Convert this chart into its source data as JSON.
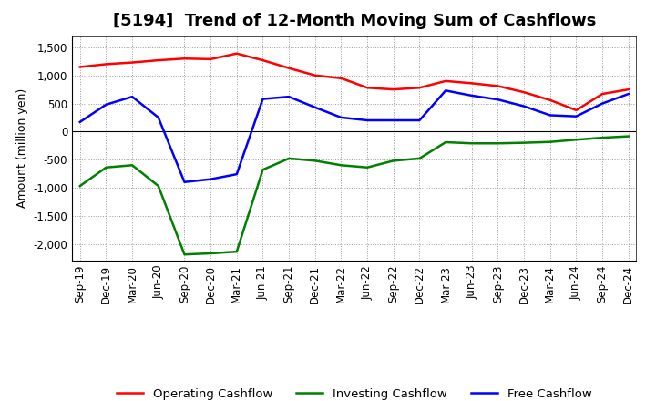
{
  "title": "[5194]  Trend of 12-Month Moving Sum of Cashflows",
  "ylabel": "Amount (million yen)",
  "x_labels": [
    "Sep-19",
    "Dec-19",
    "Mar-20",
    "Jun-20",
    "Sep-20",
    "Dec-20",
    "Mar-21",
    "Jun-21",
    "Sep-21",
    "Dec-21",
    "Mar-22",
    "Jun-22",
    "Sep-22",
    "Dec-22",
    "Mar-23",
    "Jun-23",
    "Sep-23",
    "Dec-23",
    "Mar-24",
    "Jun-24",
    "Sep-24",
    "Dec-24"
  ],
  "operating_cashflow": [
    1150,
    1200,
    1230,
    1270,
    1300,
    1290,
    1390,
    1270,
    1130,
    1000,
    950,
    780,
    750,
    780,
    900,
    860,
    810,
    700,
    560,
    380,
    670,
    750
  ],
  "investing_cashflow": [
    -970,
    -640,
    -600,
    -970,
    -2190,
    -2170,
    -2140,
    -680,
    -480,
    -520,
    -600,
    -640,
    -520,
    -480,
    -190,
    -210,
    -210,
    -200,
    -185,
    -145,
    -110,
    -85
  ],
  "free_cashflow": [
    170,
    480,
    620,
    250,
    -900,
    -850,
    -760,
    580,
    620,
    430,
    250,
    200,
    200,
    200,
    730,
    640,
    570,
    450,
    290,
    270,
    500,
    670
  ],
  "ylim": [
    -2300,
    1700
  ],
  "yticks": [
    -2000,
    -1500,
    -1000,
    -500,
    0,
    500,
    1000,
    1500
  ],
  "operating_color": "#FF0000",
  "investing_color": "#008000",
  "free_color": "#0000FF",
  "bg_color": "#FFFFFF",
  "grid_color": "#999999",
  "line_width": 1.8,
  "title_fontsize": 13,
  "axis_fontsize": 9,
  "tick_fontsize": 8.5,
  "legend_fontsize": 9.5
}
